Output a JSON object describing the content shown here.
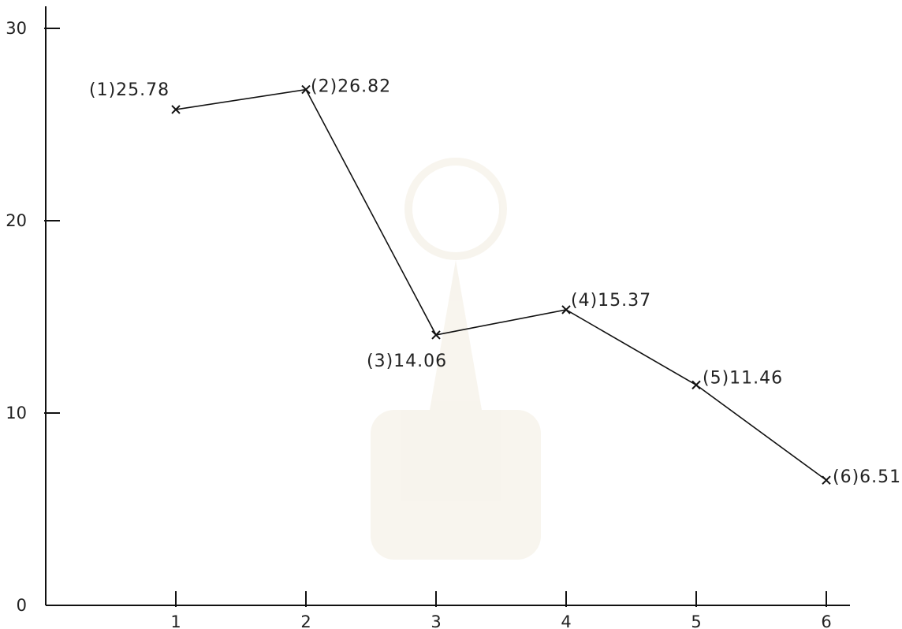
{
  "chart_data": {
    "type": "line",
    "title": "",
    "xlabel": "",
    "ylabel": "",
    "x": [
      1,
      2,
      3,
      4,
      5,
      6
    ],
    "series": [
      {
        "values": [
          25.78,
          26.82,
          14.06,
          15.37,
          11.46,
          6.51
        ]
      }
    ],
    "data_labels": [
      "(1)25.78",
      "(2)26.82",
      "(3)14.06",
      "(4)15.37",
      "(5)11.46",
      "(6)6.51"
    ],
    "x_ticks": [
      "1",
      "2",
      "3",
      "4",
      "5",
      "6"
    ],
    "y_ticks": [
      "0",
      "10",
      "20",
      "30"
    ],
    "ylim": [
      0,
      30
    ],
    "xlim": [
      0,
      6.5
    ],
    "grid": false,
    "marker": "x",
    "line_color": "#111111"
  }
}
